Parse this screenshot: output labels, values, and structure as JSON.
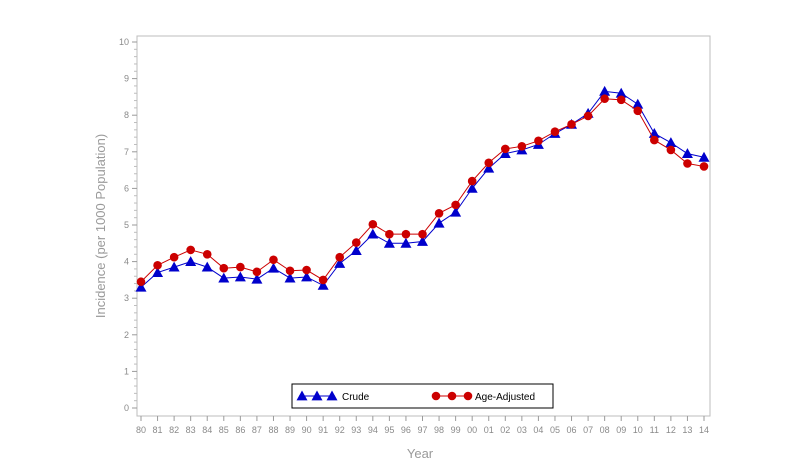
{
  "chart_data": {
    "type": "line",
    "title": "",
    "xlabel": "Year",
    "ylabel": "Incidence (per 1000 Population)",
    "ylim": [
      0,
      10
    ],
    "yticks": [
      0,
      1,
      2,
      3,
      4,
      5,
      6,
      7,
      8,
      9,
      10
    ],
    "grid": false,
    "legend_position": "bottom-center",
    "categories": [
      "80",
      "81",
      "82",
      "83",
      "84",
      "85",
      "86",
      "87",
      "88",
      "89",
      "90",
      "91",
      "92",
      "93",
      "94",
      "95",
      "96",
      "97",
      "98",
      "99",
      "00",
      "01",
      "02",
      "03",
      "04",
      "05",
      "06",
      "07",
      "08",
      "09",
      "10",
      "11",
      "12",
      "13",
      "14"
    ],
    "series": [
      {
        "name": "Crude",
        "color": "#0000cc",
        "marker": "triangle",
        "values": [
          3.3,
          3.7,
          3.85,
          4.0,
          3.85,
          3.55,
          3.58,
          3.52,
          3.82,
          3.55,
          3.58,
          3.35,
          3.95,
          4.3,
          4.75,
          4.5,
          4.5,
          4.55,
          5.05,
          5.35,
          6.0,
          6.55,
          6.95,
          7.05,
          7.2,
          7.5,
          7.75,
          8.05,
          8.65,
          8.6,
          8.3,
          7.5,
          7.25,
          6.95,
          6.85
        ]
      },
      {
        "name": "Age-Adjusted",
        "color": "#cc0000",
        "marker": "circle",
        "values": [
          3.45,
          3.9,
          4.12,
          4.32,
          4.2,
          3.82,
          3.85,
          3.72,
          4.05,
          3.75,
          3.77,
          3.5,
          4.12,
          4.52,
          5.02,
          4.75,
          4.75,
          4.75,
          5.32,
          5.55,
          6.2,
          6.7,
          7.08,
          7.15,
          7.3,
          7.55,
          7.75,
          7.98,
          8.45,
          8.42,
          8.12,
          7.32,
          7.05,
          6.68,
          6.6
        ]
      }
    ]
  }
}
